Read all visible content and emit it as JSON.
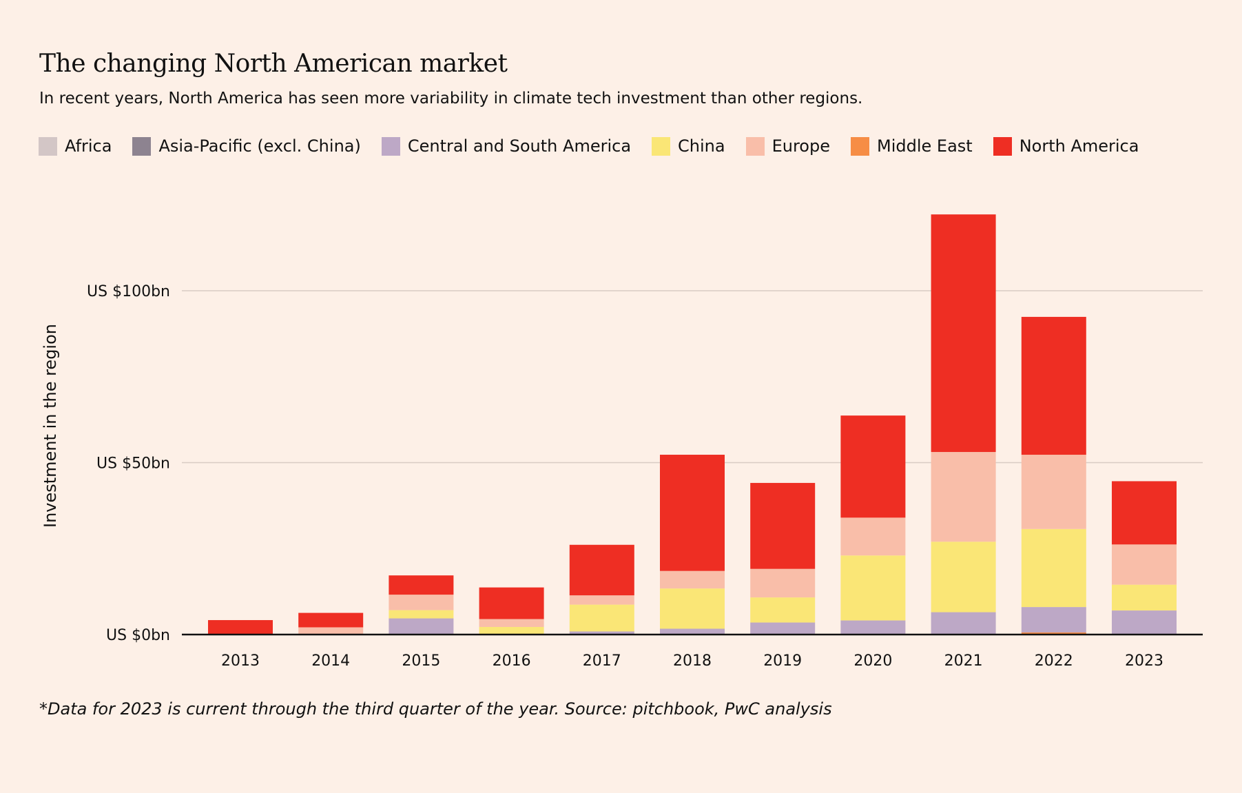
{
  "title": "The changing North American market",
  "subtitle": "In recent years, North America has seen more variability in climate tech investment than other regions.",
  "footnote": "*Data for 2023 is current through the third quarter of the year. Source: pitchbook, PwC analysis",
  "chart_data": {
    "type": "bar",
    "stacked": true,
    "title": "The changing North American market",
    "subtitle": "In recent years, North America has seen more variability in climate tech investment than other regions.",
    "xlabel": "",
    "ylabel": "Investment in the region",
    "unit": "US$ billions",
    "ylim": [
      0,
      125
    ],
    "yticks": [
      {
        "value": 0,
        "label": "US $0bn"
      },
      {
        "value": 50,
        "label": "US $50bn"
      },
      {
        "value": 100,
        "label": "US $100bn"
      }
    ],
    "grid": true,
    "legend_position": "top-left",
    "categories": [
      "2013",
      "2014",
      "2015",
      "2016",
      "2017",
      "2018",
      "2019",
      "2020",
      "2021",
      "2022",
      "2023"
    ],
    "series": [
      {
        "name": "Middle East",
        "color": "#f68d45",
        "values": [
          0,
          0,
          0,
          0,
          0,
          0,
          0,
          0,
          0,
          0.6,
          0
        ]
      },
      {
        "name": "Africa",
        "color": "#d3c6c6",
        "values": [
          0,
          0,
          0,
          0,
          0,
          0,
          0,
          0,
          0,
          0,
          0
        ]
      },
      {
        "name": "Asia-Pacific (excl. China)",
        "color": "#8d8390",
        "values": [
          0,
          0,
          0,
          0,
          0,
          0,
          0,
          0,
          0,
          0,
          0
        ]
      },
      {
        "name": "Central and South America",
        "color": "#bda8c6",
        "values": [
          0,
          0,
          4.7,
          0,
          0.9,
          1.7,
          3.5,
          4.1,
          6.5,
          7.4,
          7.0
        ]
      },
      {
        "name": "China",
        "color": "#fae676",
        "values": [
          0,
          0,
          2.4,
          2.2,
          7.8,
          11.7,
          7.3,
          18.9,
          20.5,
          22.7,
          7.5
        ]
      },
      {
        "name": "Europe",
        "color": "#f9bea9",
        "values": [
          0,
          2.1,
          4.5,
          2.3,
          2.7,
          5.1,
          8.3,
          11.0,
          26.1,
          21.6,
          11.7
        ]
      },
      {
        "name": "North America",
        "color": "#ee2e23",
        "values": [
          4.2,
          4.2,
          5.6,
          9.2,
          14.7,
          33.8,
          25.0,
          29.7,
          69.1,
          40.1,
          18.4
        ]
      }
    ],
    "legend": [
      {
        "name": "Africa",
        "color": "#d3c6c6"
      },
      {
        "name": "Asia-Pacific (excl. China)",
        "color": "#8d8390"
      },
      {
        "name": "Central and South America",
        "color": "#bda8c6"
      },
      {
        "name": "China",
        "color": "#fae676"
      },
      {
        "name": "Europe",
        "color": "#f9bea9"
      },
      {
        "name": "Middle East",
        "color": "#f68d45"
      },
      {
        "name": "North America",
        "color": "#ee2e23"
      }
    ],
    "annotations": []
  },
  "colors": {
    "background": "#fdf0e7",
    "gridline": "#d8cbc4",
    "axis": "#111111"
  }
}
